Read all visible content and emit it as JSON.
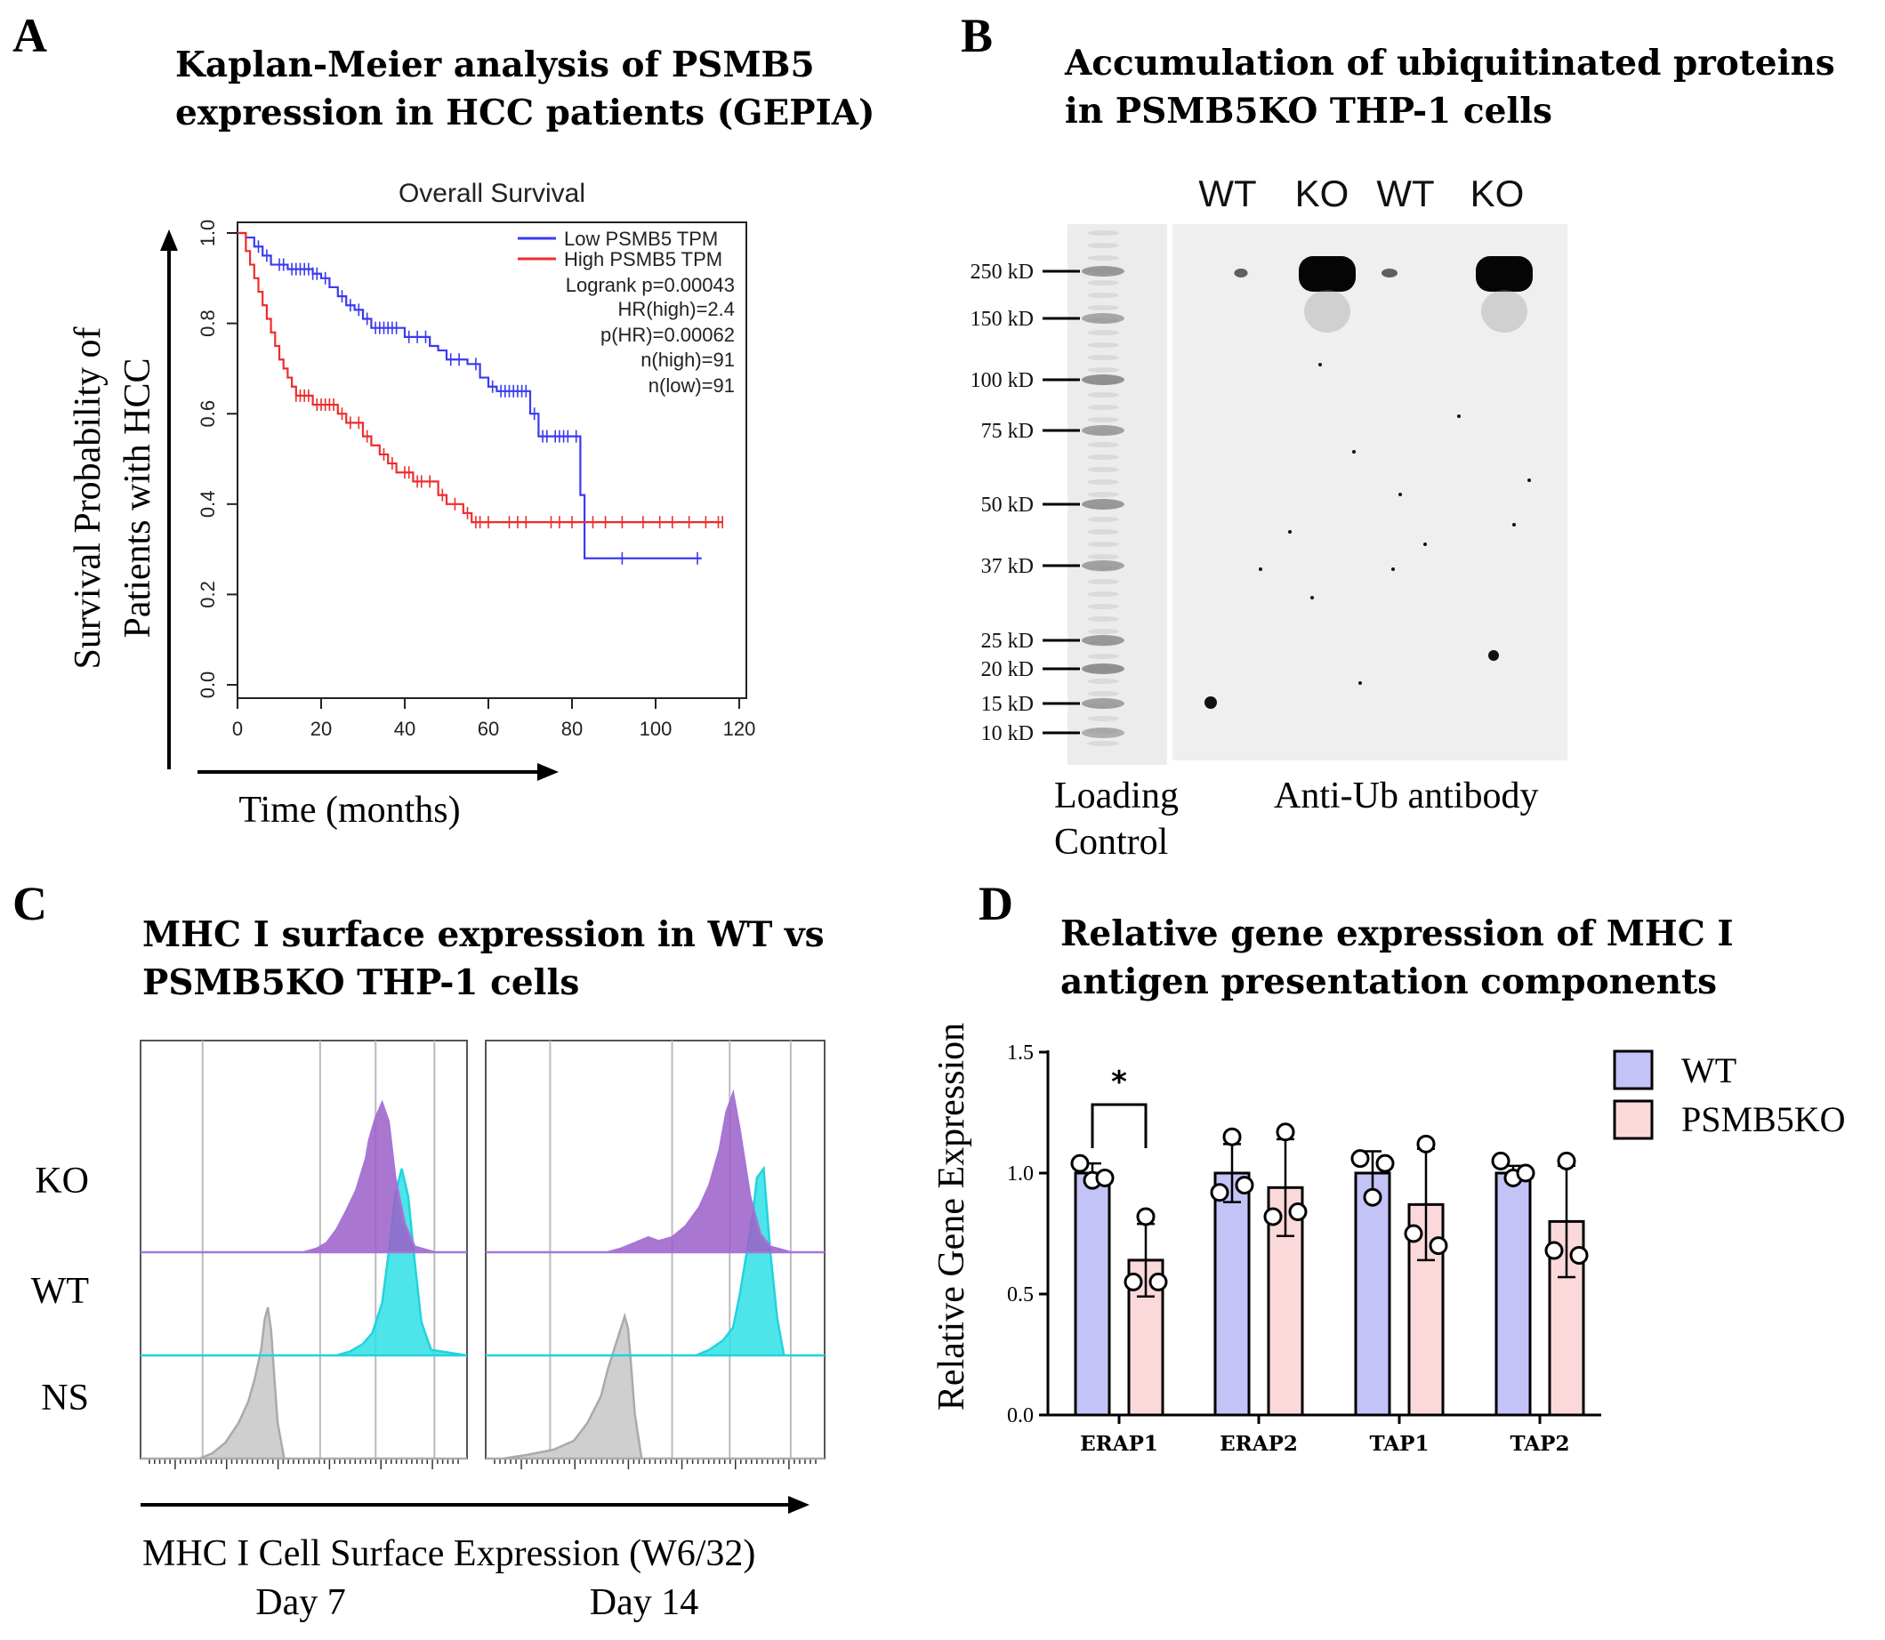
{
  "colors": {
    "low": "#3a3af0",
    "high": "#ee2c2c",
    "ko": "#9b5fc8",
    "ko_line": "#a874d6",
    "wt": "#2fe0e6",
    "wt_line": "#22d3dc",
    "ns": "#cfcfcf",
    "bar_wt": "#c3c3f7",
    "bar_ko": "#fbd9da"
  },
  "panel_a": {
    "letter": "A",
    "title_line1": "Kaplan-Meier analysis of PSMB5",
    "title_line2": "expression in HCC patients (GEPIA)",
    "plot_title": "Overall Survival",
    "ylabel_line1": "Survival Probability of",
    "ylabel_line2": "Patients with HCC",
    "xlabel": "Time (months)",
    "legend": {
      "low": "Low PSMB5 TPM",
      "high": "High PSMB5 TPM",
      "stats": [
        "Logrank p=0.00043",
        "HR(high)=2.4",
        "p(HR)=0.00062",
        "n(high)=91",
        "n(low)=91"
      ]
    }
  },
  "panel_b": {
    "letter": "B",
    "title_line1": "Accumulation of ubiquitinated proteins",
    "title_line2": "in PSMB5KO THP-1 cells",
    "lanes": [
      "WT",
      "KO",
      "WT",
      "KO"
    ],
    "markers": [
      "250 kD",
      "150 kD",
      "100 kD",
      "75 kD",
      "50 kD",
      "37 kD",
      "25 kD",
      "20 kD",
      "15 kD",
      "10 kD"
    ],
    "loading_line1": "Loading",
    "loading_line2": "Control",
    "antibody_label": "Anti-Ub antibody"
  },
  "panel_c": {
    "letter": "C",
    "title_line1": "MHC I surface expression in WT vs",
    "title_line2": "PSMB5KO THP-1 cells",
    "row_labels": [
      "KO",
      "WT",
      "NS"
    ],
    "xlabel": "MHC I Cell Surface Expression (W6/32)",
    "day_labels": [
      "Day 7",
      "Day 14"
    ]
  },
  "panel_d": {
    "letter": "D",
    "title_line1": "Relative gene expression of MHC I",
    "title_line2": "antigen presentation components",
    "ylabel": "Relative Gene Expression",
    "legend": [
      "WT",
      "PSMB5KO"
    ],
    "significance": "*"
  },
  "chart_data": [
    {
      "panel": "A",
      "type": "line",
      "title": "Overall Survival",
      "xlabel": "Time (months)",
      "ylabel": "Survival Probability of Patients with HCC",
      "xlim": [
        0,
        120
      ],
      "ylim": [
        0,
        1
      ],
      "xticks": [
        0,
        20,
        40,
        60,
        80,
        100,
        120
      ],
      "yticks": [
        0.0,
        0.2,
        0.4,
        0.6,
        0.8,
        1.0
      ],
      "series": [
        {
          "name": "Low PSMB5 TPM",
          "color_key": "low",
          "steps": [
            [
              0,
              1.0
            ],
            [
              2,
              0.99
            ],
            [
              4,
              0.97
            ],
            [
              6,
              0.95
            ],
            [
              8,
              0.93
            ],
            [
              12,
              0.92
            ],
            [
              18,
              0.91
            ],
            [
              20,
              0.9
            ],
            [
              22,
              0.88
            ],
            [
              24,
              0.86
            ],
            [
              26,
              0.84
            ],
            [
              28,
              0.83
            ],
            [
              30,
              0.81
            ],
            [
              32,
              0.79
            ],
            [
              40,
              0.77
            ],
            [
              46,
              0.75
            ],
            [
              48,
              0.74
            ],
            [
              50,
              0.72
            ],
            [
              55,
              0.71
            ],
            [
              58,
              0.68
            ],
            [
              60,
              0.66
            ],
            [
              62,
              0.65
            ],
            [
              70,
              0.6
            ],
            [
              72,
              0.55
            ],
            [
              82,
              0.42
            ],
            [
              83,
              0.28
            ],
            [
              111,
              0.28
            ]
          ],
          "censor_x": [
            5,
            7,
            10,
            11,
            13,
            14,
            15,
            16,
            17,
            18,
            19,
            21,
            25,
            27,
            29,
            31,
            33,
            34,
            35,
            36,
            37,
            38,
            41,
            43,
            45,
            51,
            53,
            57,
            61,
            63,
            64,
            65,
            66,
            67,
            68,
            69,
            71,
            73,
            74,
            76,
            77,
            78,
            79,
            81,
            92,
            110
          ]
        },
        {
          "name": "High PSMB5 TPM",
          "color_key": "high",
          "steps": [
            [
              0,
              1.0
            ],
            [
              2,
              0.96
            ],
            [
              3,
              0.93
            ],
            [
              4,
              0.9
            ],
            [
              5,
              0.87
            ],
            [
              6,
              0.84
            ],
            [
              7,
              0.81
            ],
            [
              8,
              0.78
            ],
            [
              9,
              0.75
            ],
            [
              10,
              0.72
            ],
            [
              11,
              0.7
            ],
            [
              12,
              0.68
            ],
            [
              13,
              0.66
            ],
            [
              14,
              0.64
            ],
            [
              18,
              0.62
            ],
            [
              24,
              0.6
            ],
            [
              26,
              0.58
            ],
            [
              30,
              0.55
            ],
            [
              32,
              0.53
            ],
            [
              34,
              0.51
            ],
            [
              36,
              0.49
            ],
            [
              38,
              0.47
            ],
            [
              42,
              0.45
            ],
            [
              48,
              0.42
            ],
            [
              50,
              0.4
            ],
            [
              54,
              0.38
            ],
            [
              56,
              0.36
            ],
            [
              116,
              0.36
            ]
          ],
          "censor_x": [
            14,
            15,
            16,
            17,
            19,
            20,
            21,
            22,
            23,
            25,
            27,
            29,
            31,
            35,
            37,
            40,
            41,
            43,
            44,
            46,
            49,
            52,
            55,
            57,
            58,
            60,
            65,
            67,
            69,
            75,
            77,
            80,
            85,
            88,
            92,
            97,
            101,
            104,
            108,
            112,
            115,
            116
          ]
        }
      ]
    },
    {
      "panel": "B",
      "type": "table",
      "title": "Accumulation of ubiquitinated proteins in PSMB5KO THP-1 cells",
      "lanes": [
        "WT",
        "KO",
        "WT",
        "KO"
      ],
      "marker_kD": [
        250,
        150,
        100,
        75,
        50,
        37,
        25,
        20,
        15,
        10
      ],
      "high_mw_ub_signal": [
        0.08,
        1.0,
        0.15,
        1.0
      ]
    },
    {
      "panel": "C",
      "type": "area",
      "title": "MHC I surface expression in WT vs PSMB5KO THP-1 cells",
      "xlabel": "MHC I Cell Surface Expression (W6/32)",
      "x_range": [
        0,
        1
      ],
      "days": [
        {
          "label": "Day 7",
          "series": [
            {
              "name": "KO",
              "color_key": "ko",
              "x": [
                0,
                0.5,
                0.52,
                0.54,
                0.57,
                0.6,
                0.63,
                0.66,
                0.69,
                0.7,
                0.72,
                0.74,
                0.76,
                0.78,
                0.81,
                0.84,
                0.9,
                1.0
              ],
              "y": [
                0,
                0,
                0.01,
                0.02,
                0.05,
                0.12,
                0.22,
                0.33,
                0.5,
                0.6,
                0.72,
                0.8,
                0.7,
                0.4,
                0.15,
                0.03,
                0,
                0
              ]
            },
            {
              "name": "WT",
              "color_key": "wt",
              "x": [
                0,
                0.6,
                0.64,
                0.68,
                0.71,
                0.74,
                0.76,
                0.78,
                0.8,
                0.82,
                0.84,
                0.86,
                0.89,
                1.0
              ],
              "y": [
                0,
                0,
                0.02,
                0.06,
                0.12,
                0.28,
                0.55,
                0.86,
                1.0,
                0.85,
                0.5,
                0.18,
                0.03,
                0
              ]
            },
            {
              "name": "NS",
              "color_key": "ns",
              "x": [
                0,
                0.18,
                0.22,
                0.26,
                0.3,
                0.33,
                0.35,
                0.37,
                0.38,
                0.39,
                0.4,
                0.41,
                0.42,
                0.44,
                1.0
              ],
              "y": [
                0,
                0,
                0.03,
                0.09,
                0.2,
                0.32,
                0.45,
                0.62,
                0.78,
                0.85,
                0.72,
                0.45,
                0.2,
                0,
                0
              ]
            }
          ]
        },
        {
          "label": "Day 14",
          "series": [
            {
              "name": "KO",
              "color_key": "ko",
              "x": [
                0,
                0.36,
                0.4,
                0.44,
                0.48,
                0.51,
                0.55,
                0.59,
                0.63,
                0.66,
                0.69,
                0.71,
                0.73,
                0.75,
                0.78,
                0.81,
                0.84,
                0.9,
                1.0
              ],
              "y": [
                0,
                0,
                0.02,
                0.05,
                0.08,
                0.06,
                0.08,
                0.14,
                0.24,
                0.36,
                0.55,
                0.75,
                0.85,
                0.65,
                0.3,
                0.1,
                0.03,
                0,
                0
              ]
            },
            {
              "name": "WT",
              "color_key": "wt",
              "x": [
                0,
                0.62,
                0.66,
                0.7,
                0.73,
                0.75,
                0.77,
                0.79,
                0.8,
                0.82,
                0.84,
                0.86,
                0.88,
                1.0
              ],
              "y": [
                0,
                0,
                0.03,
                0.08,
                0.15,
                0.33,
                0.55,
                0.78,
                0.95,
                1.0,
                0.55,
                0.2,
                0,
                0
              ]
            },
            {
              "name": "NS",
              "color_key": "ns",
              "x": [
                0,
                0.05,
                0.12,
                0.2,
                0.26,
                0.3,
                0.34,
                0.36,
                0.38,
                0.4,
                0.41,
                0.42,
                0.43,
                0.44,
                0.46,
                1.0
              ],
              "y": [
                0,
                0,
                0.02,
                0.05,
                0.1,
                0.2,
                0.35,
                0.5,
                0.62,
                0.74,
                0.8,
                0.73,
                0.5,
                0.25,
                0,
                0
              ]
            }
          ]
        }
      ]
    },
    {
      "panel": "D",
      "type": "bar",
      "title": "Relative gene expression of MHC I antigen presentation components",
      "ylabel": "Relative Gene Expression",
      "ylim": [
        0,
        1.5
      ],
      "yticks": [
        0.0,
        0.5,
        1.0,
        1.5
      ],
      "categories": [
        "ERAP1",
        "ERAP2",
        "TAP1",
        "TAP2"
      ],
      "series": [
        {
          "name": "WT",
          "color_key": "bar_wt",
          "values": [
            1.0,
            1.0,
            1.0,
            1.0
          ],
          "errors": [
            0.04,
            0.12,
            0.09,
            0.03
          ],
          "points": [
            [
              0.97,
              1.04,
              0.98
            ],
            [
              1.15,
              0.92,
              0.95
            ],
            [
              0.9,
              1.06,
              1.04
            ],
            [
              0.98,
              1.05,
              1.0
            ]
          ]
        },
        {
          "name": "PSMB5KO",
          "color_key": "bar_ko",
          "values": [
            0.64,
            0.94,
            0.87,
            0.8
          ],
          "errors": [
            0.15,
            0.2,
            0.23,
            0.23
          ],
          "points": [
            [
              0.82,
              0.55,
              0.55
            ],
            [
              1.17,
              0.82,
              0.84
            ],
            [
              1.12,
              0.75,
              0.7
            ],
            [
              1.05,
              0.68,
              0.66
            ]
          ]
        }
      ],
      "significance": [
        {
          "category": "ERAP1",
          "label": "*"
        }
      ]
    }
  ]
}
